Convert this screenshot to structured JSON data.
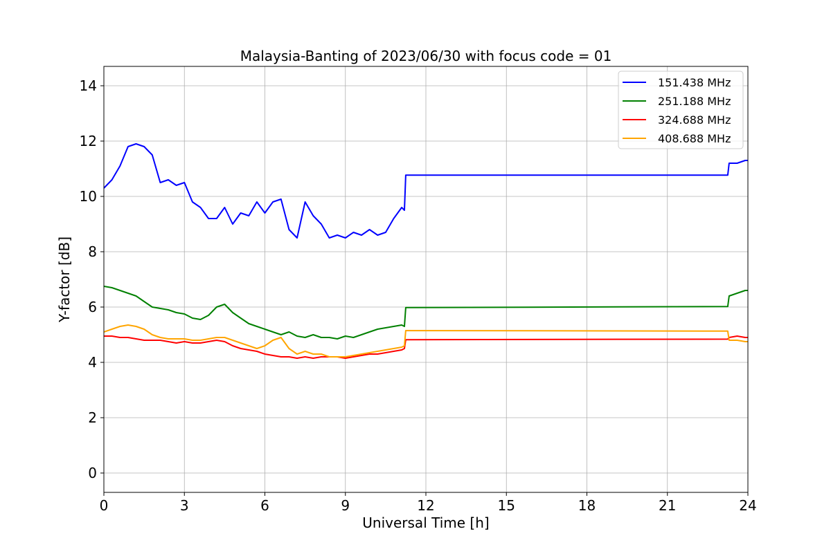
{
  "chart_data": {
    "type": "line",
    "title": "Malaysia-Banting of 2023/06/30 with focus code = 01",
    "xlabel": "Universal Time [h]",
    "ylabel": "Y-factor [dB]",
    "xlim": [
      0,
      24
    ],
    "ylim": [
      -0.7,
      14.7
    ],
    "xticks": [
      0,
      3,
      6,
      9,
      12,
      15,
      18,
      21,
      24
    ],
    "yticks": [
      0,
      2,
      4,
      6,
      8,
      10,
      12,
      14
    ],
    "grid": true,
    "legend_position": "top-right",
    "series": [
      {
        "name": "151.438 MHz",
        "color": "#0000ff",
        "x": [
          0,
          0.3,
          0.6,
          0.9,
          1.2,
          1.5,
          1.8,
          2.1,
          2.4,
          2.7,
          3.0,
          3.3,
          3.6,
          3.9,
          4.2,
          4.5,
          4.8,
          5.1,
          5.4,
          5.7,
          6.0,
          6.3,
          6.6,
          6.9,
          7.2,
          7.5,
          7.8,
          8.1,
          8.4,
          8.7,
          9.0,
          9.3,
          9.6,
          9.9,
          10.2,
          10.5,
          10.8,
          11.1,
          11.2,
          11.25,
          23.25,
          23.3,
          23.6,
          23.9,
          24.0
        ],
        "y": [
          10.3,
          10.6,
          11.1,
          11.8,
          11.9,
          11.8,
          11.5,
          10.5,
          10.6,
          10.4,
          10.5,
          9.8,
          9.6,
          9.2,
          9.2,
          9.6,
          9.0,
          9.4,
          9.3,
          9.8,
          9.4,
          9.8,
          9.9,
          8.8,
          8.5,
          9.8,
          9.3,
          9.0,
          8.5,
          8.6,
          8.5,
          8.7,
          8.6,
          8.8,
          8.6,
          8.7,
          9.2,
          9.6,
          9.5,
          10.77,
          10.77,
          11.2,
          11.2,
          11.3,
          11.3
        ]
      },
      {
        "name": "251.188 MHz",
        "color": "#008000",
        "x": [
          0,
          0.3,
          0.6,
          0.9,
          1.2,
          1.5,
          1.8,
          2.1,
          2.4,
          2.7,
          3.0,
          3.3,
          3.6,
          3.9,
          4.2,
          4.5,
          4.8,
          5.1,
          5.4,
          5.7,
          6.0,
          6.3,
          6.6,
          6.9,
          7.2,
          7.5,
          7.8,
          8.1,
          8.4,
          8.7,
          9.0,
          9.3,
          9.6,
          9.9,
          10.2,
          10.5,
          10.8,
          11.1,
          11.2,
          11.25,
          23.25,
          23.3,
          23.6,
          23.9,
          24.0
        ],
        "y": [
          6.75,
          6.7,
          6.6,
          6.5,
          6.4,
          6.2,
          6.0,
          5.95,
          5.9,
          5.8,
          5.75,
          5.6,
          5.55,
          5.7,
          6.0,
          6.1,
          5.8,
          5.6,
          5.4,
          5.3,
          5.2,
          5.1,
          5.0,
          5.1,
          4.95,
          4.9,
          5.0,
          4.9,
          4.9,
          4.85,
          4.95,
          4.9,
          5.0,
          5.1,
          5.2,
          5.25,
          5.3,
          5.35,
          5.3,
          5.98,
          6.02,
          6.4,
          6.5,
          6.6,
          6.6
        ]
      },
      {
        "name": "324.688 MHz",
        "color": "#ff0000",
        "x": [
          0,
          0.3,
          0.6,
          0.9,
          1.2,
          1.5,
          1.8,
          2.1,
          2.4,
          2.7,
          3.0,
          3.3,
          3.6,
          3.9,
          4.2,
          4.5,
          4.8,
          5.1,
          5.4,
          5.7,
          6.0,
          6.3,
          6.6,
          6.9,
          7.2,
          7.5,
          7.8,
          8.1,
          8.4,
          8.7,
          9.0,
          9.3,
          9.6,
          9.9,
          10.2,
          10.5,
          10.8,
          11.1,
          11.2,
          11.25,
          23.25,
          23.3,
          23.6,
          23.9,
          24.0
        ],
        "y": [
          4.95,
          4.95,
          4.9,
          4.9,
          4.85,
          4.8,
          4.8,
          4.8,
          4.75,
          4.7,
          4.75,
          4.7,
          4.7,
          4.75,
          4.8,
          4.75,
          4.6,
          4.5,
          4.45,
          4.4,
          4.3,
          4.25,
          4.2,
          4.2,
          4.15,
          4.2,
          4.15,
          4.2,
          4.2,
          4.2,
          4.15,
          4.2,
          4.25,
          4.3,
          4.3,
          4.35,
          4.4,
          4.45,
          4.5,
          4.82,
          4.84,
          4.9,
          4.95,
          4.9,
          4.9
        ]
      },
      {
        "name": "408.688 MHz",
        "color": "#ffa500",
        "x": [
          0,
          0.3,
          0.6,
          0.9,
          1.2,
          1.5,
          1.8,
          2.1,
          2.4,
          2.7,
          3.0,
          3.3,
          3.6,
          3.9,
          4.2,
          4.5,
          4.8,
          5.1,
          5.4,
          5.7,
          6.0,
          6.3,
          6.6,
          6.9,
          7.2,
          7.5,
          7.8,
          8.1,
          8.4,
          8.7,
          9.0,
          9.3,
          9.6,
          9.9,
          10.2,
          10.5,
          10.8,
          11.1,
          11.2,
          11.25,
          23.25,
          23.3,
          23.6,
          23.9,
          24.0
        ],
        "y": [
          5.1,
          5.2,
          5.3,
          5.35,
          5.3,
          5.2,
          5.0,
          4.9,
          4.85,
          4.85,
          4.85,
          4.8,
          4.8,
          4.85,
          4.9,
          4.9,
          4.8,
          4.7,
          4.6,
          4.5,
          4.6,
          4.8,
          4.9,
          4.5,
          4.3,
          4.4,
          4.3,
          4.3,
          4.2,
          4.2,
          4.2,
          4.25,
          4.3,
          4.35,
          4.4,
          4.45,
          4.5,
          4.55,
          4.6,
          5.15,
          5.13,
          4.8,
          4.8,
          4.75,
          4.75
        ]
      }
    ]
  }
}
